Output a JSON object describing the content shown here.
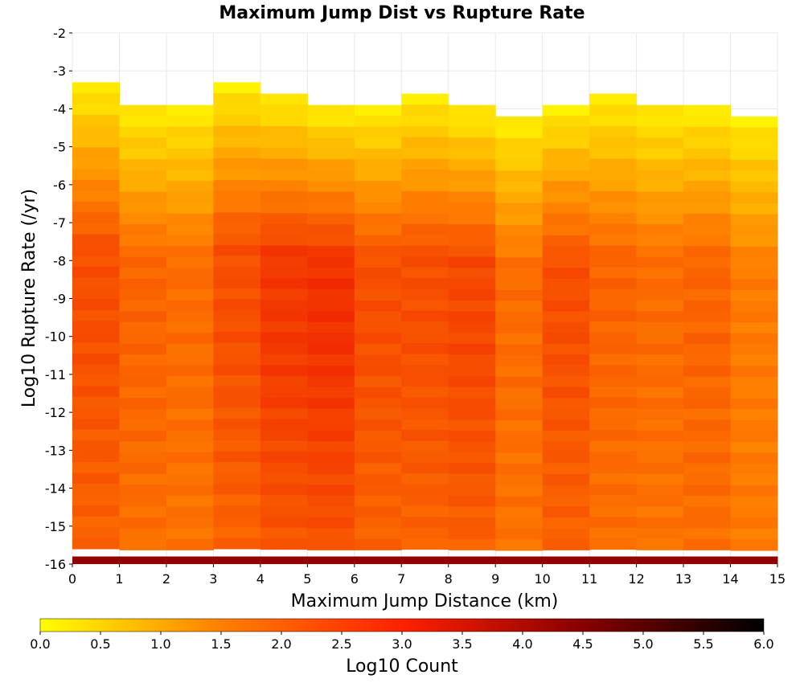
{
  "chart_data": {
    "type": "heatmap",
    "title": "Maximum Jump Dist vs Rupture Rate",
    "xlabel": "Maximum Jump Distance (km)",
    "ylabel": "Log10 Rupture Rate (/yr)",
    "xlim": [
      0,
      15
    ],
    "ylim": [
      -16,
      -2
    ],
    "x_ticks": [
      "0",
      "1",
      "2",
      "3",
      "4",
      "5",
      "6",
      "7",
      "8",
      "9",
      "10",
      "11",
      "12",
      "13",
      "14",
      "15"
    ],
    "y_ticks": [
      "-2",
      "-3",
      "-4",
      "-5",
      "-6",
      "-7",
      "-8",
      "-9",
      "-10",
      "-11",
      "-12",
      "-13",
      "-14",
      "-15",
      "-16"
    ],
    "colorbar": {
      "label": "Log10 Count",
      "range": [
        0,
        6
      ],
      "ticks": [
        "0.0",
        "0.5",
        "1.0",
        "1.5",
        "2.0",
        "2.5",
        "3.0",
        "3.5",
        "4.0",
        "4.5",
        "5.0",
        "5.5",
        "6.0"
      ],
      "colors": [
        "#ffff00",
        "#ff7f00",
        "#ff2000",
        "#880000",
        "#000000"
      ]
    },
    "x_bin_width_km": 1,
    "y_bin_height_log10": 0.286,
    "columns": [
      {
        "x_bin": [
          0,
          1
        ],
        "top_log10_rate": -3.3,
        "peak_log10_count": 2.2
      },
      {
        "x_bin": [
          1,
          2
        ],
        "top_log10_rate": -3.9,
        "peak_log10_count": 1.9
      },
      {
        "x_bin": [
          2,
          3
        ],
        "top_log10_rate": -3.9,
        "peak_log10_count": 1.8
      },
      {
        "x_bin": [
          3,
          4
        ],
        "top_log10_rate": -3.3,
        "peak_log10_count": 2.2
      },
      {
        "x_bin": [
          4,
          5
        ],
        "top_log10_rate": -3.6,
        "peak_log10_count": 2.5
      },
      {
        "x_bin": [
          5,
          6
        ],
        "top_log10_rate": -3.9,
        "peak_log10_count": 2.6
      },
      {
        "x_bin": [
          6,
          7
        ],
        "top_log10_rate": -3.9,
        "peak_log10_count": 2.2
      },
      {
        "x_bin": [
          7,
          8
        ],
        "top_log10_rate": -3.6,
        "peak_log10_count": 2.2
      },
      {
        "x_bin": [
          8,
          9
        ],
        "top_log10_rate": -3.9,
        "peak_log10_count": 2.3
      },
      {
        "x_bin": [
          9,
          10
        ],
        "top_log10_rate": -4.2,
        "peak_log10_count": 1.8
      },
      {
        "x_bin": [
          10,
          11
        ],
        "top_log10_rate": -3.9,
        "peak_log10_count": 2.2
      },
      {
        "x_bin": [
          11,
          12
        ],
        "top_log10_rate": -3.6,
        "peak_log10_count": 1.9
      },
      {
        "x_bin": [
          12,
          13
        ],
        "top_log10_rate": -3.9,
        "peak_log10_count": 1.8
      },
      {
        "x_bin": [
          13,
          14
        ],
        "top_log10_rate": -3.9,
        "peak_log10_count": 1.9
      },
      {
        "x_bin": [
          14,
          15
        ],
        "top_log10_rate": -4.2,
        "peak_log10_count": 1.6
      }
    ],
    "bottom_row": {
      "log10_rate": -16,
      "log10_count": 4.3
    }
  }
}
